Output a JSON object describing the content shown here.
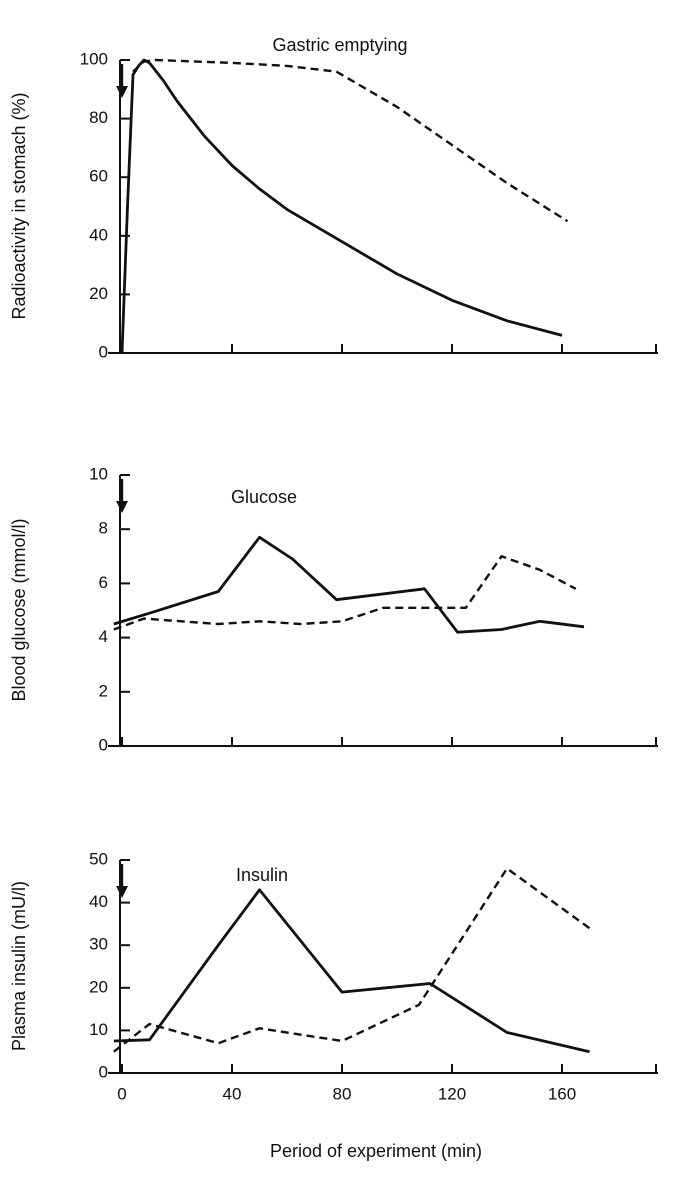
{
  "chart_data": [
    {
      "type": "line",
      "title": "Gastric emptying",
      "ylabel": "Radioactivity in stomach (%)",
      "xlabel": "",
      "xlim": [
        -5,
        195
      ],
      "ylim": [
        0,
        100
      ],
      "yticks": [
        0,
        20,
        40,
        60,
        80,
        100
      ],
      "xticks": [
        0,
        40,
        80,
        120,
        160
      ],
      "show_x_tick_labels": false,
      "grid": false,
      "dose_arrow_x": 0,
      "series": [
        {
          "style": "solid",
          "x": [
            0,
            2,
            4,
            6,
            8,
            10,
            15,
            20,
            30,
            40,
            50,
            60,
            80,
            100,
            120,
            140,
            160
          ],
          "y": [
            0,
            50,
            95,
            98,
            100,
            99,
            93,
            86,
            74,
            64,
            56,
            49,
            38,
            27,
            18,
            11,
            6
          ]
        },
        {
          "style": "dashed",
          "x": [
            4,
            8,
            12,
            40,
            60,
            78,
            100,
            120,
            140,
            162
          ],
          "y": [
            96,
            99.5,
            100,
            99,
            98,
            96,
            84,
            71,
            58,
            45
          ]
        }
      ]
    },
    {
      "type": "line",
      "title": "Glucose",
      "ylabel": "Blood glucose (mmol/l)",
      "xlabel": "",
      "xlim": [
        -5,
        195
      ],
      "ylim": [
        0,
        10
      ],
      "yticks": [
        0,
        2,
        4,
        6,
        8,
        10
      ],
      "xticks": [
        0,
        40,
        80,
        120,
        160
      ],
      "show_x_tick_labels": false,
      "grid": false,
      "dose_arrow_x": 0,
      "series": [
        {
          "style": "solid",
          "x": [
            -3,
            10,
            35,
            50,
            62,
            78,
            110,
            122,
            138,
            152,
            168
          ],
          "y": [
            4.5,
            4.9,
            5.7,
            7.7,
            6.9,
            5.4,
            5.8,
            4.2,
            4.3,
            4.6,
            4.4
          ]
        },
        {
          "style": "dashed",
          "x": [
            -3,
            8,
            35,
            50,
            65,
            80,
            95,
            110,
            125,
            138,
            152,
            165
          ],
          "y": [
            4.3,
            4.7,
            4.5,
            4.6,
            4.5,
            4.6,
            5.1,
            5.1,
            5.1,
            7.0,
            6.5,
            5.8
          ]
        }
      ]
    },
    {
      "type": "line",
      "title": "Insulin",
      "ylabel": "Plasma insulin (mU/l)",
      "xlabel": "Period of experiment (min)",
      "xlim": [
        -5,
        195
      ],
      "ylim": [
        0,
        50
      ],
      "yticks": [
        0,
        10,
        20,
        30,
        40,
        50
      ],
      "xticks": [
        0,
        40,
        80,
        120,
        160
      ],
      "show_x_tick_labels": true,
      "grid": false,
      "dose_arrow_x": 0,
      "series": [
        {
          "style": "solid",
          "x": [
            -3,
            10,
            35,
            50,
            80,
            112,
            140,
            170
          ],
          "y": [
            7.5,
            7.8,
            30,
            43,
            19,
            21,
            9.5,
            5
          ]
        },
        {
          "style": "dashed",
          "x": [
            -3,
            10,
            35,
            50,
            80,
            108,
            140,
            170
          ],
          "y": [
            5,
            11.5,
            7,
            10.5,
            7.5,
            16,
            48,
            34
          ]
        }
      ]
    }
  ]
}
